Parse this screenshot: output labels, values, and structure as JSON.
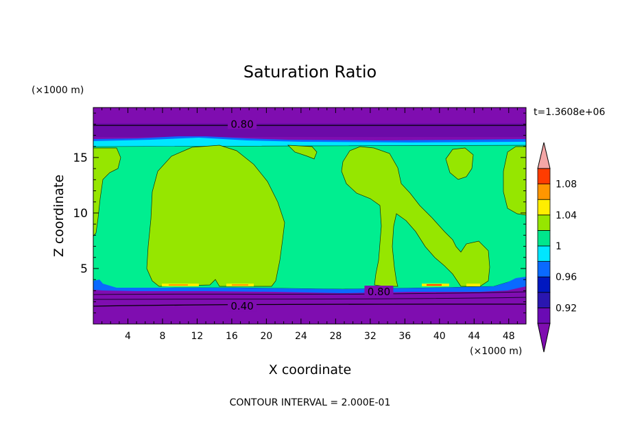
{
  "chart_data": {
    "type": "heatmap",
    "title": "Saturation Ratio",
    "xlabel": "X coordinate",
    "ylabel": "Z coordinate",
    "x_unit": "(×1000 m)",
    "z_unit": "(×1000 m)",
    "time_label": "t=1.3608e+06",
    "footer": "CONTOUR INTERVAL = 2.000E-01",
    "xlim": [
      0,
      50
    ],
    "ylim": [
      0,
      19.5
    ],
    "x_ticks": [
      "4",
      "8",
      "12",
      "16",
      "20",
      "24",
      "28",
      "32",
      "36",
      "40",
      "44",
      "48"
    ],
    "x_tick_values": [
      4,
      8,
      12,
      16,
      20,
      24,
      28,
      32,
      36,
      40,
      44,
      48
    ],
    "y_ticks": [
      "5",
      "10",
      "15"
    ],
    "y_tick_values": [
      5,
      10,
      15
    ],
    "contour_labels": [
      {
        "text": "0.80",
        "x": 17.2,
        "z": 18.0
      },
      {
        "text": "0.80",
        "x": 33.0,
        "z": 2.9
      },
      {
        "text": "0.40",
        "x": 17.2,
        "z": 1.6
      }
    ],
    "colorbar": {
      "levels": [
        0.9,
        0.92,
        0.94,
        0.96,
        0.98,
        1.0,
        1.02,
        1.04,
        1.06,
        1.08,
        1.1
      ],
      "tick_labels": [
        "0.92",
        "0.96",
        "1",
        "1.04",
        "1.08"
      ],
      "tick_values": [
        0.92,
        0.96,
        1.0,
        1.04,
        1.08
      ],
      "colors": [
        "#6a0ab4",
        "#2a16b0",
        "#0018c0",
        "#0a6aff",
        "#00e6ff",
        "#00e68c",
        "#96e600",
        "#ffee00",
        "#ff9600",
        "#ff3c00",
        "#e60000"
      ],
      "under_color": "#7f0db0",
      "over_color": "#f4a6a6"
    },
    "palette": {
      "low": "#7f0db0",
      "near_sat_blue": "#0a6aff",
      "cyan": "#00e6ff",
      "green": "#00ee90",
      "lime": "#96e600",
      "yellow": "#ffee00",
      "orange": "#ff9600",
      "red": "#ff3c00"
    }
  }
}
